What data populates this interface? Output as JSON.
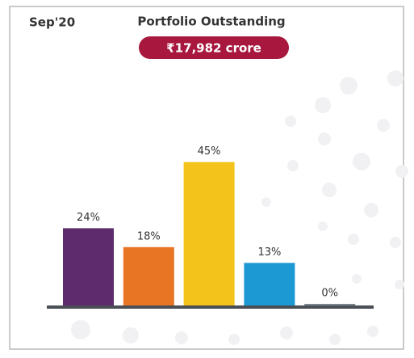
{
  "chart_data": {
    "type": "bar",
    "period": "Sep'20",
    "title": "Portfolio Outstanding",
    "badge": "₹17,982 crore",
    "categories": [
      null,
      null,
      null,
      null,
      null
    ],
    "values": [
      24,
      18,
      45,
      13,
      0
    ],
    "value_labels": [
      "24%",
      "18%",
      "45%",
      "13%",
      "0%"
    ],
    "colors": [
      "#5e2b6d",
      "#e87524",
      "#f4c31b",
      "#1c98d3",
      "#7d858c"
    ]
  }
}
